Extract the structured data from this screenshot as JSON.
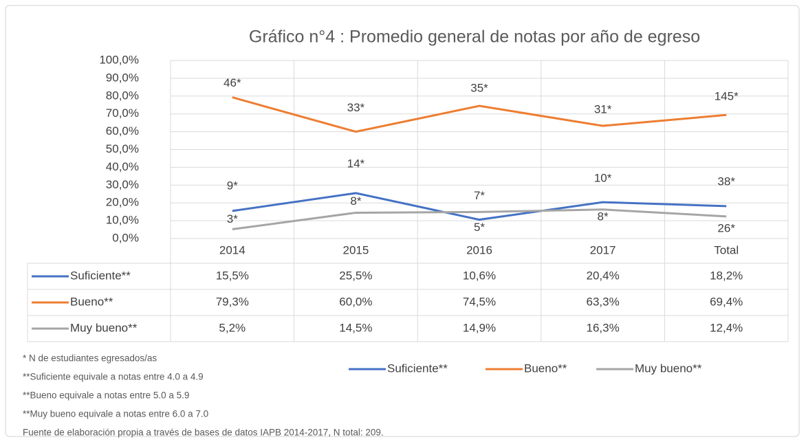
{
  "chart_data": {
    "type": "line",
    "title": "Gráfico n°4 : Promedio general de notas por año de egreso",
    "categories": [
      "2014",
      "2015",
      "2016",
      "2017",
      "Total"
    ],
    "series": [
      {
        "name": "Suficiente**",
        "color": "#4472c4",
        "values": [
          15.5,
          25.5,
          10.6,
          20.4,
          18.2
        ],
        "value_labels": [
          "15,5%",
          "25,5%",
          "10,6%",
          "20,4%",
          "18,2%"
        ],
        "count_labels": [
          "9*",
          "14*",
          "5*",
          "10*",
          "38*"
        ]
      },
      {
        "name": "Bueno**",
        "color": "#ed7d31",
        "values": [
          79.3,
          60.0,
          74.5,
          63.3,
          69.4
        ],
        "value_labels": [
          "79,3%",
          "60,0%",
          "74,5%",
          "63,3%",
          "69,4%"
        ],
        "count_labels": [
          "46*",
          "33*",
          "35*",
          "31*",
          "145*"
        ]
      },
      {
        "name": "Muy bueno**",
        "color": "#a5a5a5",
        "values": [
          5.2,
          14.5,
          14.9,
          16.3,
          12.4
        ],
        "value_labels": [
          "5,2%",
          "14,5%",
          "14,9%",
          "16,3%",
          "12,4%"
        ],
        "count_labels": [
          "3*",
          "8*",
          "7*",
          "8*",
          "26*"
        ]
      }
    ],
    "ylim": [
      0,
      100
    ],
    "yticks": [
      {
        "value": 0,
        "label": "0,0%"
      },
      {
        "value": 10,
        "label": "10,0%"
      },
      {
        "value": 20,
        "label": "20,0%"
      },
      {
        "value": 30,
        "label": "30,0%"
      },
      {
        "value": 40,
        "label": "40,0%"
      },
      {
        "value": 50,
        "label": "50,0%"
      },
      {
        "value": 60,
        "label": "60,0%"
      },
      {
        "value": 70,
        "label": "70,0%"
      },
      {
        "value": 80,
        "label": "80,0%"
      },
      {
        "value": 90,
        "label": "90,0%"
      },
      {
        "value": 100,
        "label": "100,0%"
      }
    ],
    "grid": true,
    "legend": "bottom",
    "footnotes": [
      "* N de estudiantes egresados/as",
      "**Suficiente equivale a notas entre 4.0 a 4.9",
      "**Bueno equivale a notas entre 5.0 a 5.9",
      "**Muy bueno equivale a notas entre 6.0 a 7.0",
      "Fuente de elaboración propia a través de bases de datos IAPB 2014-2017, N total: 209."
    ]
  }
}
